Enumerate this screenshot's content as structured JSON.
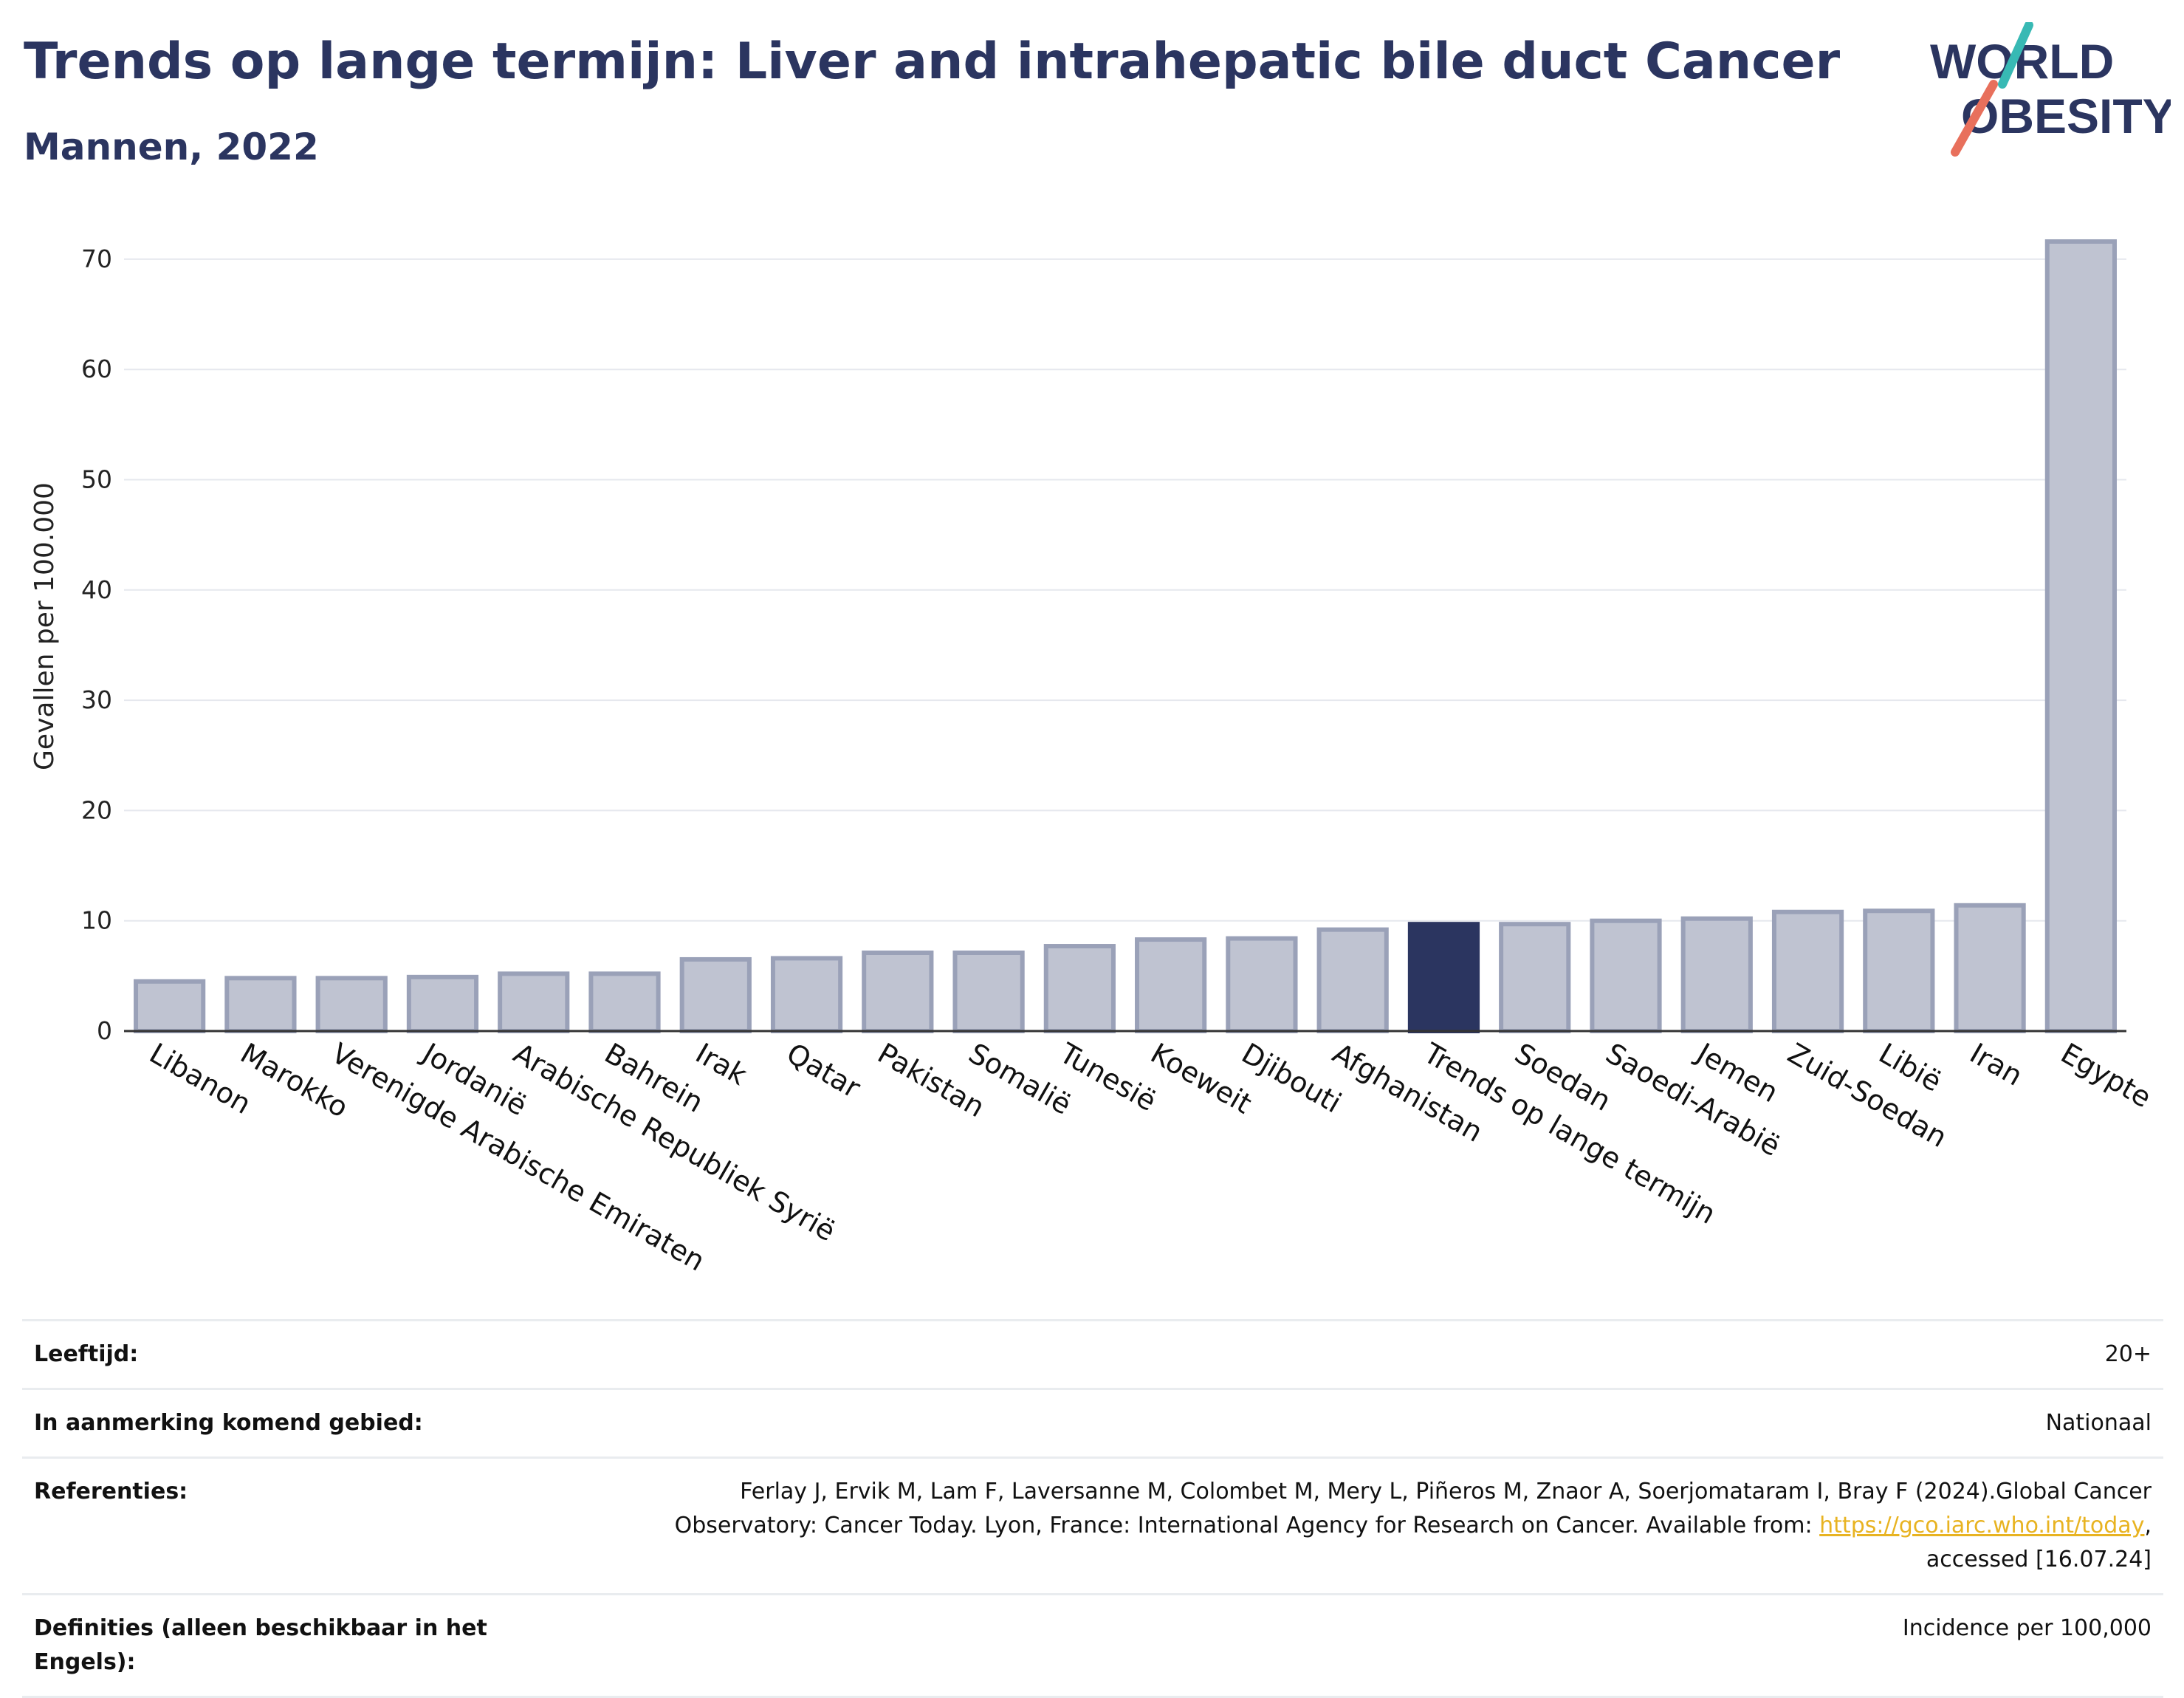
{
  "header": {
    "title": "Trends op lange termijn: Liver and intrahepatic bile duct Cancer",
    "subtitle": "Mannen, 2022"
  },
  "logo": {
    "line1": "WORLD",
    "line2": "OBESITY"
  },
  "colors": {
    "bar": "#bfc3d1",
    "bar_border": "#9aa1b8",
    "highlight": "#2b3560",
    "grid": "#e6e8ee",
    "axis": "#333333"
  },
  "chart_data": {
    "type": "bar",
    "ylabel": "Gevallen per 100.000",
    "ylim": [
      0,
      75
    ],
    "yticks": [
      0,
      10,
      20,
      30,
      40,
      50,
      60,
      70
    ],
    "grid": true,
    "highlight_category": "Trends op lange termijn",
    "categories": [
      "Libanon",
      "Marokko",
      "Verenigde Arabische Emiraten",
      "Jordanië",
      "Arabische Republiek Syrië",
      "Bahrein",
      "Irak",
      "Qatar",
      "Pakistan",
      "Somalië",
      "Tunesië",
      "Koeweit",
      "Djibouti",
      "Afghanistan",
      "Trends op lange termijn",
      "Soedan",
      "Saoedi-Arabië",
      "Jemen",
      "Zuid-Soedan",
      "Libië",
      "Iran",
      "Egypte"
    ],
    "values": [
      4.5,
      4.8,
      4.8,
      4.9,
      5.2,
      5.2,
      6.5,
      6.6,
      7.1,
      7.1,
      7.7,
      8.3,
      8.4,
      9.2,
      9.7,
      9.7,
      10.0,
      10.2,
      10.8,
      10.9,
      11.4,
      71.6
    ]
  },
  "info": {
    "age_label": "Leeftijd:",
    "age_value": "20+",
    "area_label": "In aanmerking komend gebied:",
    "area_value": "Nationaal",
    "ref_label": "Referenties:",
    "ref_text_1": "Ferlay J, Ervik M, Lam F, Laversanne M, Colombet M, Mery L, Piñeros M, Znaor A, Soerjomataram I, Bray F (2024).Global Cancer",
    "ref_text_2": "Observatory: Cancer Today. Lyon, France: International Agency for Research on Cancer. Available from: ",
    "ref_link": "https://gco.iarc.who.int/today",
    "ref_text_3": ",",
    "ref_text_4": "accessed [16.07.24]",
    "def_label": "Definities (alleen beschikbaar in het Engels):",
    "def_value": "Incidence per 100,000"
  }
}
